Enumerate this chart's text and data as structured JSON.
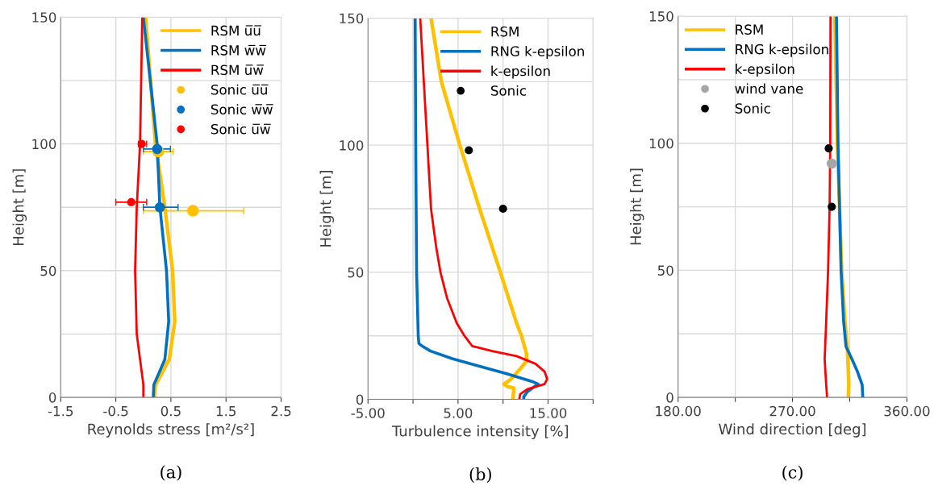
{
  "chart_data": [
    {
      "type": "line",
      "xlabel": "Reynolds stress [m²/s²]",
      "ylabel": "Height [m]",
      "annotations": [
        "(a)"
      ],
      "xlim": [
        -1.5,
        2.5
      ],
      "xticks": [
        -1.5,
        -0.5,
        0.5,
        1.5,
        2.5
      ],
      "ylim": [
        0,
        150
      ],
      "yticks": [
        0,
        {
          "value": 25,
          "label": null
        },
        50,
        {
          "value": 75,
          "label": null
        },
        100,
        {
          "value": 125,
          "label": null
        },
        150
      ],
      "grid": true,
      "legend": "top right",
      "series": [
        {
          "name": "RSM u̅u̅",
          "color": "#ffc000",
          "x": [
            0.2,
            0.22,
            0.47,
            0.57,
            0.53,
            0.39,
            0.22,
            0.04
          ],
          "values": [
            0,
            5,
            15,
            30,
            50,
            75,
            100,
            150
          ]
        },
        {
          "name": "RSM w̅w̅",
          "color": "#0070c0",
          "x": [
            0.18,
            0.19,
            0.39,
            0.46,
            0.42,
            0.3,
            0.25,
            0.0
          ],
          "values": [
            0,
            5,
            15,
            30,
            50,
            75,
            100,
            150
          ]
        },
        {
          "name": "RSM u̅w̅",
          "color": "#ff0000",
          "x": [
            0.0,
            0.0,
            -0.03,
            -0.12,
            -0.15,
            -0.12,
            -0.06,
            -0.02
          ],
          "values": [
            0,
            5,
            10,
            25,
            50,
            75,
            100,
            150
          ]
        },
        {
          "name": "Sonic u̅u̅",
          "type": "scatter",
          "color": "#ffc000",
          "x": [
            0.27,
            0.9
          ],
          "values": [
            97,
            73.6
          ],
          "xerrors": [
            [
              0.0,
              0.54
            ],
            [
              0.0,
              1.82
            ]
          ]
        },
        {
          "name": "Sonic w̅w̅",
          "type": "scatter",
          "color": "#0070c0",
          "x": [
            0.25,
            0.3
          ],
          "values": [
            98,
            75
          ],
          "xerrors": [
            [
              0.0,
              0.49
            ],
            [
              0.0,
              0.63
            ]
          ]
        },
        {
          "name": "Sonic u̅w̅",
          "type": "scatter",
          "color": "#ff0000",
          "x": [
            -0.03,
            -0.22
          ],
          "values": [
            100,
            77
          ],
          "xerrors": [
            [
              -0.09,
              0.06
            ],
            [
              -0.5,
              0.06
            ]
          ]
        }
      ]
    },
    {
      "type": "line",
      "xlabel": "Turbulence intensity [%]",
      "ylabel": "Height [m]",
      "annotations": [
        "(b)"
      ],
      "xlim": [
        -5,
        20
      ],
      "xticks": [
        {
          "value": -5,
          "label": "-5.00"
        },
        {
          "value": 0,
          "label": null
        },
        {
          "value": 5,
          "label": "5.00"
        },
        {
          "value": 10,
          "label": null
        },
        {
          "value": 15,
          "label": "15.00"
        },
        {
          "value": 20,
          "label": null
        }
      ],
      "ylim": [
        0,
        150
      ],
      "yticks": [
        0,
        {
          "value": 25,
          "label": null
        },
        50,
        {
          "value": 75,
          "label": null
        },
        100,
        {
          "value": 125,
          "label": null
        },
        150
      ],
      "grid": true,
      "legend": "top right",
      "series": [
        {
          "name": "RSM",
          "color": "#ffc000",
          "x": [
            11.1,
            11.2,
            10.5,
            10.1,
            10.9,
            11.9,
            12.6,
            12.6,
            12.05,
            11.5,
            9.7,
            7.4,
            5.2,
            3.15,
            2.0
          ],
          "values": [
            0,
            4.5,
            5,
            6,
            8,
            12,
            15,
            18,
            25,
            30,
            50,
            75,
            100,
            125,
            150
          ]
        },
        {
          "name": "RNG k-epsilon",
          "color": "#0070c0",
          "x": [
            12.3,
            12.3,
            12.7,
            13.9,
            13.25,
            10.5,
            7.4,
            4.35,
            1.95,
            1.0,
            0.65,
            0.58,
            0.4,
            0.3,
            0.24
          ],
          "values": [
            0,
            1,
            3,
            6,
            7,
            10,
            13,
            16,
            19,
            21,
            22,
            25,
            50,
            100,
            150
          ]
        },
        {
          "name": "k-epsilon",
          "color": "#ff0000",
          "x": [
            11.8,
            11.9,
            12.7,
            14.6,
            14.9,
            14.6,
            13.6,
            11.5,
            8.8,
            6.57,
            5.72,
            4.86,
            3.77,
            3.05,
            2.57,
            2.0,
            1.6,
            1.2,
            0.8
          ],
          "values": [
            0,
            2,
            4,
            6,
            8,
            11,
            14,
            17,
            19,
            21,
            25,
            30,
            40,
            50,
            60,
            75,
            100,
            125,
            150
          ]
        },
        {
          "name": "Sonic",
          "type": "scatter",
          "color": "#000000",
          "x": [
            6.2,
            10.0
          ],
          "values": [
            98,
            75
          ]
        }
      ]
    },
    {
      "type": "line",
      "xlabel": "Wind direction [deg]",
      "ylabel": "Height [m]",
      "annotations": [
        "(c)"
      ],
      "xlim": [
        180,
        360
      ],
      "xticks": [
        {
          "value": 180,
          "label": "180.00"
        },
        {
          "value": 225,
          "label": null
        },
        {
          "value": 270,
          "label": "270.00"
        },
        {
          "value": 315,
          "label": null
        },
        {
          "value": 360,
          "label": "360.00"
        }
      ],
      "ylim": [
        0,
        150
      ],
      "yticks": [
        0,
        {
          "value": 25,
          "label": null
        },
        50,
        {
          "value": 75,
          "label": null
        },
        100,
        {
          "value": 125,
          "label": null
        },
        150
      ],
      "grid": true,
      "legend": "top left",
      "series": [
        {
          "name": "RSM",
          "color": "#ffc000",
          "x": [
            313.9,
            314.3,
            313.9,
            313.1,
            311.2,
            308.7,
            307,
            305.3,
            303.3
          ],
          "values": [
            0,
            5,
            10,
            20,
            30,
            50,
            75,
            100,
            150
          ]
        },
        {
          "name": "RNG k-epsilon",
          "color": "#0070c0",
          "x": [
            325.3,
            324.8,
            321.2,
            316.8,
            312.1,
            310.2,
            308.2,
            307,
            305.8,
            304.6
          ],
          "values": [
            0,
            5,
            10,
            15,
            20,
            30,
            50,
            75,
            100,
            150
          ]
        },
        {
          "name": "k-epsilon",
          "color": "#ff0000",
          "x": [
            297.2,
            296.5,
            295.3,
            296.5,
            298,
            299.2,
            299.7,
            299.9
          ],
          "values": [
            0,
            5,
            15,
            30,
            50,
            75,
            100,
            150
          ]
        },
        {
          "name": "wind vane",
          "type": "scatter",
          "color": "#a6a6a6",
          "x": [
            300.9
          ],
          "values": [
            92
          ]
        },
        {
          "name": "Sonic",
          "type": "scatter",
          "color": "#000000",
          "x": [
            298.5,
            300.9
          ],
          "values": [
            98,
            75
          ]
        }
      ]
    }
  ]
}
